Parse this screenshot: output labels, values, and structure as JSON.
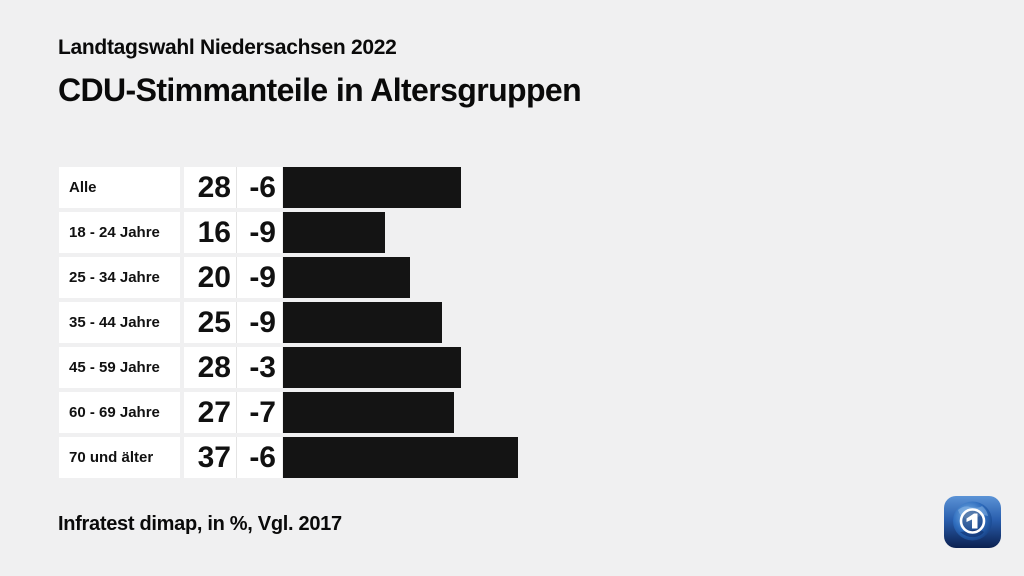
{
  "header": {
    "subtitle": "Landtagswahl Niedersachsen 2022",
    "title": "CDU-Stimmanteile in Altersgruppen"
  },
  "footer": {
    "source_line": "Infratest dimap, in %, Vgl. 2017"
  },
  "colors": {
    "background": "#f0f0f1",
    "bar": "#141414",
    "cell": "#ffffff",
    "text": "#0a0a0a",
    "logo_blue_light": "#5b93d6",
    "logo_blue_dark": "#0b2050"
  },
  "chart_data": {
    "type": "bar",
    "orientation": "horizontal",
    "title": "CDU-Stimmanteile in Altersgruppen",
    "subtitle": "Landtagswahl Niedersachsen 2022",
    "categories": [
      "Alle",
      "18 - 24 Jahre",
      "25 - 34 Jahre",
      "35 - 44 Jahre",
      "45 - 59 Jahre",
      "60 - 69 Jahre",
      "70 und älter"
    ],
    "values": [
      28,
      16,
      20,
      25,
      28,
      27,
      37
    ],
    "diffs": [
      "-6",
      "-9",
      "-9",
      "-9",
      "-3",
      "-7",
      "-6"
    ],
    "unit": "%",
    "comparison": "Vgl. 2017",
    "source": "Infratest dimap",
    "xlim": [
      0,
      40
    ],
    "grid": false,
    "legend": false
  }
}
